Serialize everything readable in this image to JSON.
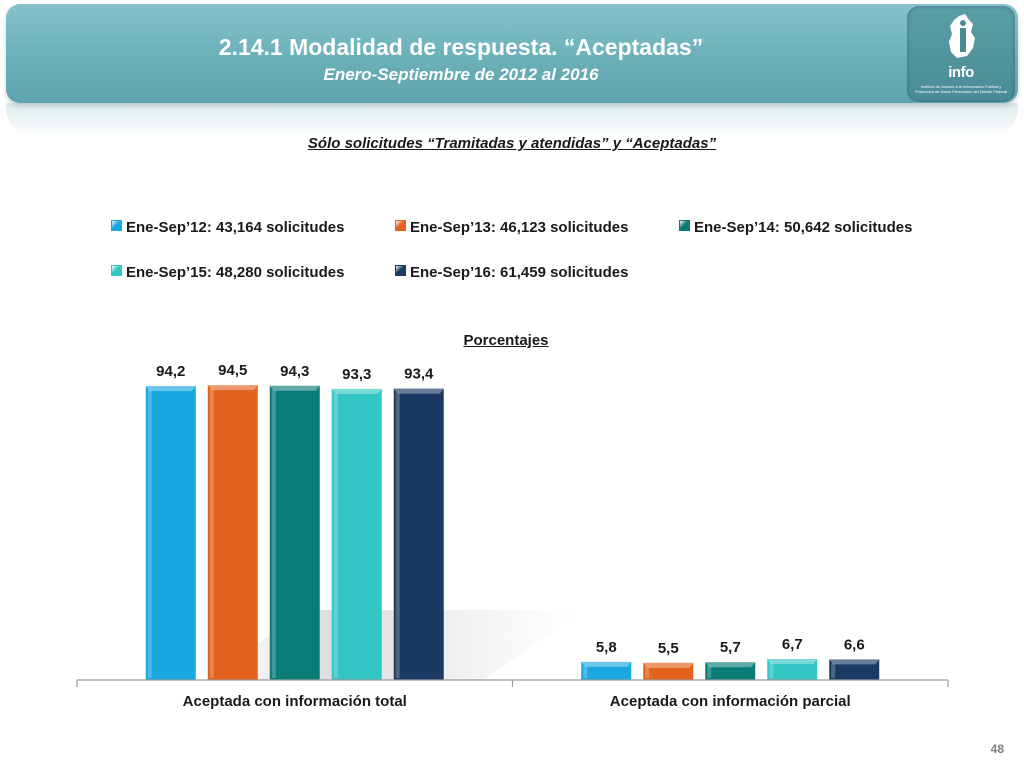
{
  "header": {
    "title": "2.14.1 Modalidad de respuesta. “Aceptadas”",
    "subtitle": "Enero-Septiembre de 2012 al 2016",
    "logo_text": "info",
    "logo_small_text": "Instituto de Acceso a la Información Pública y Protección de Datos Personales del Distrito Federal"
  },
  "section_title": "Sólo solicitudes “Tramitadas y atendidas” y “Aceptadas”",
  "page_number": "48",
  "chart_data": {
    "type": "bar",
    "title": "Porcentajes",
    "categories": [
      "Aceptada con información total",
      "Aceptada con información parcial"
    ],
    "series": [
      {
        "name": "Ene-Sep’12: 43,164 solicitudes",
        "color": "#1aa7e0",
        "values": [
          94.2,
          5.8
        ],
        "labels": [
          "94,2",
          "5,8"
        ]
      },
      {
        "name": "Ene-Sep’13: 46,123 solicitudes",
        "color": "#e2621e",
        "values": [
          94.5,
          5.5
        ],
        "labels": [
          "94,5",
          "5,5"
        ]
      },
      {
        "name": "Ene-Sep’14: 50,642 solicitudes",
        "color": "#0a7c78",
        "values": [
          94.3,
          5.7
        ],
        "labels": [
          "94,3",
          "5,7"
        ]
      },
      {
        "name": "Ene-Sep’15: 48,280 solicitudes",
        "color": "#33c6c4",
        "values": [
          93.3,
          6.7
        ],
        "labels": [
          "93,3",
          "6,7"
        ]
      },
      {
        "name": "Ene-Sep’16: 61,459 solicitudes",
        "color": "#1b3a63",
        "values": [
          93.4,
          6.6
        ],
        "labels": [
          "93,4",
          "6,6"
        ]
      }
    ],
    "ylim": [
      0,
      100
    ],
    "grid": false,
    "legend_position": "top"
  }
}
